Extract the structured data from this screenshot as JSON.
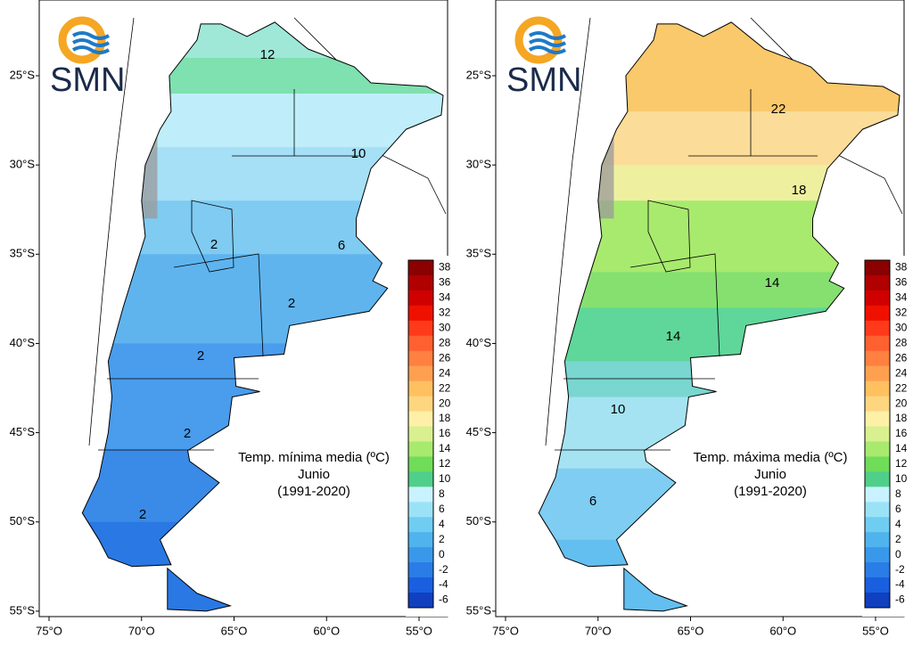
{
  "logo": "SMN",
  "lon_labels": [
    "75°O",
    "70°O",
    "65°O",
    "60°O",
    "55°O"
  ],
  "lat_labels": [
    "25°S",
    "30°S",
    "35°S",
    "40°S",
    "45°S",
    "50°S",
    "55°S"
  ],
  "colorbar_labels": [
    38,
    36,
    34,
    32,
    30,
    28,
    26,
    24,
    22,
    20,
    18,
    16,
    14,
    12,
    10,
    8,
    6,
    4,
    2,
    0,
    -2,
    -4,
    -6
  ],
  "panels": [
    {
      "title": "Temp. mínima media (ºC)",
      "month": "Junio",
      "period": "(1991-2020)",
      "contour_labels": [
        "12",
        "10",
        "6",
        "2",
        "2",
        "2",
        "2",
        "2"
      ]
    },
    {
      "title": "Temp. máxima media (ºC)",
      "month": "Junio",
      "period": "(1991-2020)",
      "contour_labels": [
        "22",
        "18",
        "14",
        "14",
        "10",
        "6"
      ]
    }
  ]
}
